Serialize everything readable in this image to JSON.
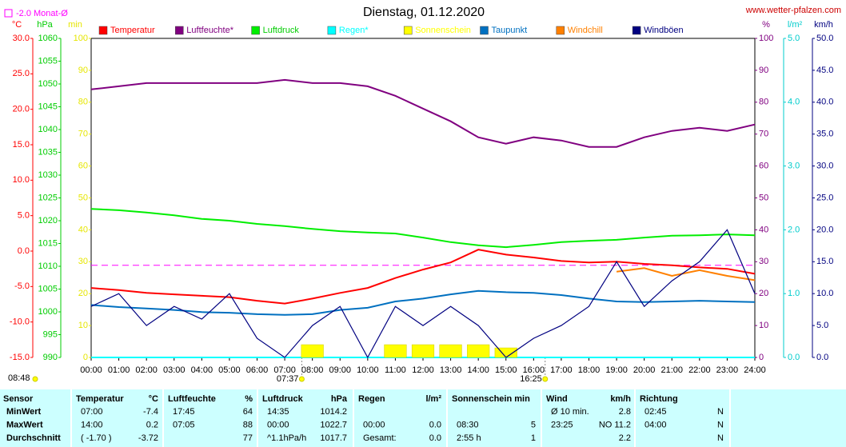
{
  "chart_data": {
    "type": "line",
    "title": "Dienstag, 01.12.2020",
    "source": "www.wetter-pfalzen.com",
    "monthavg": {
      "label": "-2.0 Monat-Ø",
      "value": -2.0,
      "color": "#ff00ff",
      "axis": "temp"
    },
    "categories": [
      "00:00",
      "01:00",
      "02:00",
      "03:00",
      "04:00",
      "05:00",
      "06:00",
      "07:00",
      "08:00",
      "09:00",
      "10:00",
      "11:00",
      "12:00",
      "13:00",
      "14:00",
      "15:00",
      "16:00",
      "17:00",
      "18:00",
      "19:00",
      "20:00",
      "21:00",
      "22:00",
      "23:00",
      "24:00"
    ],
    "annotations": [
      "07:37",
      "16:25",
      "08:48"
    ],
    "axes": [
      {
        "id": "temp",
        "unit": "°C",
        "color": "#ff0000",
        "lim": [
          -15,
          30
        ],
        "ticks": [
          {
            "value": 30,
            "label": "30.0"
          },
          {
            "value": 25,
            "label": "25.0"
          },
          {
            "value": 20,
            "label": "20.0"
          },
          {
            "value": 15,
            "label": "15.0"
          },
          {
            "value": 10,
            "label": "10.0"
          },
          {
            "value": 5,
            "label": "5.0"
          },
          {
            "value": 0,
            "label": "0.0"
          },
          {
            "value": -5,
            "label": "-5.0"
          },
          {
            "value": -10,
            "label": "-10.0"
          },
          {
            "value": -15,
            "label": "-15.0"
          }
        ]
      },
      {
        "id": "press",
        "unit": "hPa",
        "color": "#00cc00",
        "lim": [
          990,
          1060
        ],
        "ticks": [
          1060,
          1055,
          1050,
          1045,
          1040,
          1035,
          1030,
          1025,
          1020,
          1015,
          1010,
          1005,
          1000,
          995,
          990
        ]
      },
      {
        "id": "min",
        "unit": "min",
        "color": "#e6e600",
        "lim": [
          0,
          100
        ],
        "ticks": [
          100,
          90,
          80,
          70,
          60,
          50,
          40,
          30,
          20,
          10,
          0
        ]
      },
      {
        "id": "hum",
        "unit": "%",
        "color": "#800080",
        "lim": [
          0,
          100
        ],
        "ticks": [
          100,
          90,
          80,
          70,
          60,
          50,
          40,
          30,
          20,
          10,
          0
        ]
      },
      {
        "id": "rain",
        "unit": "l/m²",
        "color": "#00cccc",
        "lim": [
          0,
          5
        ],
        "ticks": [
          {
            "value": 5,
            "label": "5.0"
          },
          {
            "value": 4,
            "label": "4.0"
          },
          {
            "value": 3,
            "label": "3.0"
          },
          {
            "value": 2,
            "label": "2.0"
          },
          {
            "value": 1,
            "label": "1.0"
          },
          {
            "value": 0,
            "label": "0.0"
          }
        ]
      },
      {
        "id": "wind",
        "unit": "km/h",
        "color": "#000080",
        "lim": [
          0,
          50
        ],
        "ticks": [
          {
            "value": 50,
            "label": "50.0"
          },
          {
            "value": 45,
            "label": "45.0"
          },
          {
            "value": 40,
            "label": "40.0"
          },
          {
            "value": 35,
            "label": "35.0"
          },
          {
            "value": 30,
            "label": "30.0"
          },
          {
            "value": 25,
            "label": "25.0"
          },
          {
            "value": 20,
            "label": "20.0"
          },
          {
            "value": 15,
            "label": "15.0"
          },
          {
            "value": 10,
            "label": "10.0"
          },
          {
            "value": 5,
            "label": "5.0"
          },
          {
            "value": 0,
            "label": "0.0"
          }
        ]
      }
    ],
    "series": [
      {
        "name": "Temperatur",
        "color": "#ff0000",
        "axis": "temp",
        "values": [
          -5.2,
          -5.5,
          -5.9,
          -6.1,
          -6.3,
          -6.5,
          -7.0,
          -7.4,
          -6.7,
          -5.9,
          -5.2,
          -3.8,
          -2.6,
          -1.6,
          0.2,
          -0.5,
          -0.9,
          -1.4,
          -1.6,
          -1.5,
          -1.8,
          -2.0,
          -2.3,
          -2.5,
          -3.2
        ]
      },
      {
        "name": "Luftfeuchte*",
        "color": "#800080",
        "axis": "hum",
        "values": [
          84,
          85,
          86,
          86,
          86,
          86,
          86,
          87,
          86,
          86,
          85,
          82,
          78,
          74,
          69,
          67,
          69,
          68,
          66,
          66,
          69,
          71,
          72,
          71,
          73
        ]
      },
      {
        "name": "Luftdruck",
        "color": "#00ee00",
        "axis": "press",
        "values": [
          1022.6,
          1022.3,
          1021.8,
          1021.2,
          1020.4,
          1020.0,
          1019.3,
          1018.8,
          1018.2,
          1017.7,
          1017.4,
          1017.2,
          1016.3,
          1015.3,
          1014.6,
          1014.2,
          1014.7,
          1015.3,
          1015.6,
          1015.8,
          1016.3,
          1016.7,
          1016.8,
          1017.0,
          1016.8
        ]
      },
      {
        "name": "Regen*",
        "color": "#00ffff",
        "axis": "rain",
        "values": [
          0,
          0,
          0,
          0,
          0,
          0,
          0,
          0,
          0,
          0,
          0,
          0,
          0,
          0,
          0,
          0,
          0,
          0,
          0,
          0,
          0,
          0,
          0,
          0,
          0
        ]
      },
      {
        "name": "Sonnenschein",
        "color": "#ffff00",
        "axis": "min",
        "style": "bar",
        "values": [
          0,
          0,
          0,
          0,
          0,
          0,
          0,
          0,
          4,
          0,
          0,
          4,
          4,
          4,
          4,
          3,
          0,
          0,
          0,
          0,
          0,
          0,
          0,
          0,
          0
        ]
      },
      {
        "name": "Taupunkt",
        "color": "#0070c0",
        "axis": "temp",
        "values": [
          -7.6,
          -7.9,
          -8.1,
          -8.3,
          -8.6,
          -8.7,
          -8.9,
          -9.0,
          -8.9,
          -8.3,
          -8.0,
          -7.1,
          -6.7,
          -6.1,
          -5.6,
          -5.8,
          -5.9,
          -6.2,
          -6.7,
          -7.1,
          -7.2,
          -7.1,
          -7.0,
          -7.1,
          -7.2
        ]
      },
      {
        "name": "Windchill",
        "color": "#ff8000",
        "axis": "temp",
        "values": [
          null,
          null,
          null,
          null,
          null,
          null,
          null,
          null,
          null,
          null,
          null,
          null,
          null,
          null,
          null,
          null,
          null,
          null,
          null,
          -2.9,
          -2.4,
          -3.5,
          -2.7,
          -3.5,
          -4.1
        ]
      },
      {
        "name": "Windböen",
        "color": "#000080",
        "axis": "wind",
        "values": [
          8,
          10,
          5,
          8,
          6,
          10,
          3,
          0,
          5,
          8,
          0,
          8,
          5,
          8,
          5,
          0,
          3,
          5,
          8,
          15,
          8,
          12,
          15,
          20,
          10
        ]
      }
    ]
  },
  "table": {
    "header": [
      [
        "Sensor",
        null
      ],
      [
        "Temperatur",
        "°C"
      ],
      [
        "Luftfeuchte",
        "%"
      ],
      [
        "Luftdruck",
        "hPa"
      ],
      [
        "Regen",
        "l/m²"
      ],
      [
        "Sonnenschein min",
        null
      ],
      [
        "Wind",
        "km/h"
      ],
      [
        "Richtung",
        null
      ]
    ],
    "rows": [
      {
        "label": "MinWert",
        "cells": [
          "07:00",
          "-7.4",
          "17:45",
          "64",
          "14:35",
          "1014.2",
          null,
          null,
          null,
          null,
          "Ø 10 min.",
          "2.8",
          "02:45",
          "N"
        ]
      },
      {
        "label": "MaxWert",
        "cells": [
          "14:00",
          "0.2",
          "07:05",
          "88",
          "00:00",
          "1022.7",
          "00:00",
          "0.0",
          "08:30",
          "5",
          "23:25",
          "NO 11.2",
          "04:00",
          "N"
        ]
      },
      {
        "label": "Durchschnitt",
        "cells": [
          "( -1.70 )",
          "-3.72",
          null,
          "77",
          "^1.1hPa/h",
          "1017.7",
          "Gesamt:",
          "0.0",
          "2:55 h",
          "1",
          null,
          "2.2",
          null,
          "N"
        ]
      }
    ]
  }
}
